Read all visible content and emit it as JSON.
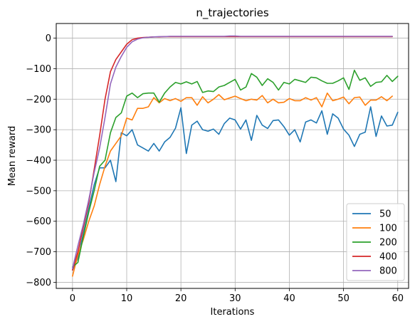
{
  "chart_data": {
    "type": "line",
    "title": "n_trajectories",
    "xlabel": "Iterations",
    "ylabel": "Mean reward",
    "xlim": [
      -3,
      62
    ],
    "ylim": [
      -820,
      48
    ],
    "xticks": [
      0,
      10,
      20,
      30,
      40,
      50,
      60
    ],
    "yticks": [
      -800,
      -700,
      -600,
      -500,
      -400,
      -300,
      -200,
      -100,
      0
    ],
    "grid": true,
    "legend_position": "bottom-right",
    "series": [
      {
        "name": "50",
        "color": "#1f77b4",
        "values": [
          -760,
          -720,
          -640,
          -560,
          -480,
          -425,
          -425,
          -400,
          -470,
          -310,
          -320,
          -300,
          -350,
          -360,
          -370,
          -345,
          -370,
          -340,
          -325,
          -295,
          -228,
          -378,
          -285,
          -272,
          -300,
          -305,
          -298,
          -315,
          -280,
          -262,
          -268,
          -298,
          -268,
          -335,
          -253,
          -285,
          -296,
          -270,
          -268,
          -290,
          -318,
          -300,
          -340,
          -275,
          -268,
          -278,
          -238,
          -315,
          -248,
          -262,
          -298,
          -318,
          -355,
          -315,
          -308,
          -225,
          -322,
          -255,
          -288,
          -285,
          -243
        ]
      },
      {
        "name": "100",
        "color": "#ff7f0e",
        "values": [
          -780,
          -710,
          -660,
          -600,
          -550,
          -480,
          -420,
          -370,
          -345,
          -320,
          -262,
          -268,
          -230,
          -230,
          -225,
          -195,
          -212,
          -198,
          -205,
          -198,
          -207,
          -195,
          -195,
          -220,
          -192,
          -212,
          -200,
          -185,
          -202,
          -196,
          -190,
          -198,
          -205,
          -200,
          -203,
          -188,
          -212,
          -200,
          -212,
          -210,
          -198,
          -205,
          -205,
          -195,
          -203,
          -195,
          -225,
          -180,
          -205,
          -200,
          -193,
          -215,
          -195,
          -193,
          -220,
          -203,
          -203,
          -192,
          -205,
          -190
        ]
      },
      {
        "name": "200",
        "color": "#2ca02c",
        "values": [
          -750,
          -735,
          -650,
          -570,
          -500,
          -420,
          -400,
          -310,
          -260,
          -245,
          -190,
          -180,
          -195,
          -182,
          -180,
          -180,
          -210,
          -180,
          -160,
          -145,
          -150,
          -143,
          -150,
          -142,
          -178,
          -173,
          -175,
          -160,
          -155,
          -145,
          -135,
          -170,
          -160,
          -116,
          -128,
          -155,
          -133,
          -145,
          -170,
          -145,
          -150,
          -135,
          -140,
          -145,
          -128,
          -130,
          -140,
          -148,
          -148,
          -140,
          -130,
          -168,
          -105,
          -138,
          -130,
          -158,
          -145,
          -143,
          -122,
          -142,
          -125
        ]
      },
      {
        "name": "400",
        "color": "#d62728",
        "values": [
          -760,
          -700,
          -620,
          -540,
          -430,
          -320,
          -200,
          -110,
          -70,
          -45,
          -20,
          -5,
          0,
          2,
          3,
          4,
          4,
          5,
          5,
          5,
          5,
          5,
          5,
          5,
          5,
          5,
          5,
          5,
          5,
          5,
          5,
          5,
          5,
          5,
          5,
          5,
          5,
          5,
          5,
          5,
          5,
          5,
          5,
          5,
          5,
          5,
          5,
          5,
          5,
          5,
          5,
          5,
          5,
          5,
          5,
          5,
          5,
          5,
          5,
          5
        ]
      },
      {
        "name": "800",
        "color": "#9467bd",
        "values": [
          -755,
          -680,
          -610,
          -530,
          -440,
          -360,
          -260,
          -150,
          -95,
          -60,
          -30,
          -12,
          -3,
          1,
          3,
          4,
          5,
          5,
          6,
          6,
          6,
          6,
          6,
          6,
          6,
          6,
          6,
          6,
          6,
          7,
          7,
          6,
          6,
          6,
          6,
          6,
          6,
          6,
          6,
          6,
          6,
          6,
          6,
          6,
          6,
          6,
          6,
          6,
          6,
          6,
          6,
          6,
          6,
          6,
          6,
          6,
          6,
          6,
          6,
          6
        ]
      }
    ]
  }
}
